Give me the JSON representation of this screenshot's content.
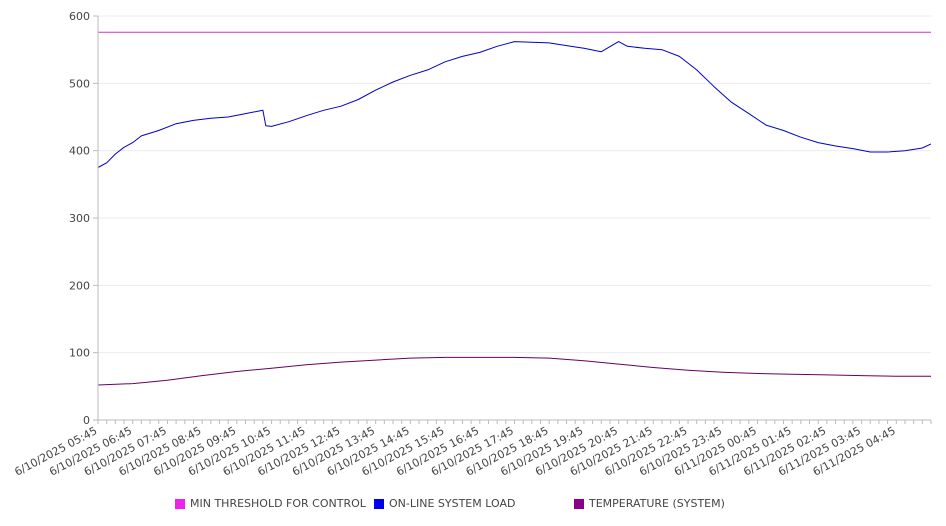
{
  "chart_data": {
    "type": "line",
    "title": "",
    "xlabel": "",
    "ylabel": "",
    "ylim": [
      0,
      600
    ],
    "y_ticks": [
      0,
      100,
      200,
      300,
      400,
      500,
      600
    ],
    "grid": true,
    "legend_position": "bottom",
    "x_tick_labels": [
      "6/10/2025 05:45",
      "6/10/2025 06:45",
      "6/10/2025 07:45",
      "6/10/2025 08:45",
      "6/10/2025 09:45",
      "6/10/2025 10:45",
      "6/10/2025 11:45",
      "6/10/2025 12:45",
      "6/10/2025 13:45",
      "6/10/2025 14:45",
      "6/10/2025 15:45",
      "6/10/2025 16:45",
      "6/10/2025 17:45",
      "6/10/2025 18:45",
      "6/10/2025 19:45",
      "6/10/2025 20:45",
      "6/10/2025 21:45",
      "6/10/2025 22:45",
      "6/10/2025 23:45",
      "6/11/2025 00:45",
      "6/11/2025 01:45",
      "6/11/2025 02:45",
      "6/11/2025 03:45",
      "6/11/2025 04:45"
    ],
    "x_start": "6/10/2025 05:45",
    "x_end": "6/11/2025 05:45",
    "series": [
      {
        "name": "MIN THRESHOLD FOR CONTROL",
        "color": "#cc33cc",
        "x": [
          "6/10/2025 05:45",
          "6/11/2025 05:45"
        ],
        "values": [
          576,
          576
        ]
      },
      {
        "name": "ON-LINE SYSTEM LOAD",
        "color": "#0000cc",
        "x": [
          "6/10/2025 05:45",
          "6/10/2025 06:00",
          "6/10/2025 06:15",
          "6/10/2025 06:30",
          "6/10/2025 06:45",
          "6/10/2025 07:00",
          "6/10/2025 07:30",
          "6/10/2025 08:00",
          "6/10/2025 08:30",
          "6/10/2025 09:00",
          "6/10/2025 09:30",
          "6/10/2025 10:00",
          "6/10/2025 10:30",
          "6/10/2025 10:35",
          "6/10/2025 10:45",
          "6/10/2025 11:15",
          "6/10/2025 11:45",
          "6/10/2025 12:15",
          "6/10/2025 12:45",
          "6/10/2025 13:15",
          "6/10/2025 13:45",
          "6/10/2025 14:15",
          "6/10/2025 14:45",
          "6/10/2025 15:15",
          "6/10/2025 15:45",
          "6/10/2025 16:15",
          "6/10/2025 16:45",
          "6/10/2025 17:15",
          "6/10/2025 17:45",
          "6/10/2025 18:15",
          "6/10/2025 18:45",
          "6/10/2025 19:15",
          "6/10/2025 19:45",
          "6/10/2025 20:15",
          "6/10/2025 20:45",
          "6/10/2025 21:00",
          "6/10/2025 21:30",
          "6/10/2025 22:00",
          "6/10/2025 22:30",
          "6/10/2025 23:00",
          "6/10/2025 23:30",
          "6/11/2025 00:00",
          "6/11/2025 00:30",
          "6/11/2025 01:00",
          "6/11/2025 01:30",
          "6/11/2025 02:00",
          "6/11/2025 02:30",
          "6/11/2025 03:00",
          "6/11/2025 03:30",
          "6/11/2025 04:00",
          "6/11/2025 04:30",
          "6/11/2025 05:00",
          "6/11/2025 05:30",
          "6/11/2025 05:45"
        ],
        "values": [
          375,
          382,
          395,
          405,
          412,
          422,
          430,
          440,
          445,
          448,
          450,
          455,
          460,
          437,
          436,
          443,
          452,
          460,
          466,
          476,
          490,
          502,
          512,
          520,
          532,
          540,
          546,
          555,
          562,
          561,
          560,
          556,
          552,
          547,
          562,
          555,
          552,
          550,
          540,
          520,
          495,
          472,
          455,
          438,
          430,
          420,
          412,
          407,
          403,
          398,
          398,
          400,
          404,
          410
        ]
      },
      {
        "name": "TEMPERATURE (SYSTEM)",
        "color": "#660066",
        "x": [
          "6/10/2025 05:45",
          "6/10/2025 06:45",
          "6/10/2025 07:45",
          "6/10/2025 08:45",
          "6/10/2025 09:45",
          "6/10/2025 10:45",
          "6/10/2025 11:45",
          "6/10/2025 12:45",
          "6/10/2025 13:45",
          "6/10/2025 14:45",
          "6/10/2025 15:45",
          "6/10/2025 16:45",
          "6/10/2025 17:45",
          "6/10/2025 18:45",
          "6/10/2025 19:45",
          "6/10/2025 20:45",
          "6/10/2025 21:45",
          "6/10/2025 22:45",
          "6/10/2025 23:45",
          "6/11/2025 00:45",
          "6/11/2025 01:45",
          "6/11/2025 02:45",
          "6/11/2025 03:45",
          "6/11/2025 04:45",
          "6/11/2025 05:45"
        ],
        "values": [
          52,
          54,
          59,
          66,
          72,
          77,
          82,
          86,
          89,
          92,
          93,
          93,
          93,
          92,
          88,
          83,
          78,
          74,
          71,
          69,
          68,
          67,
          66,
          65,
          65
        ]
      }
    ]
  }
}
